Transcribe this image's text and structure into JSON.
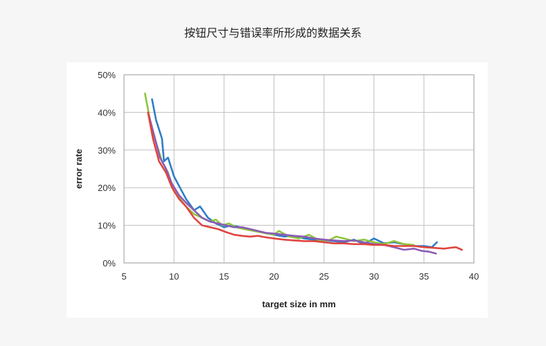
{
  "page": {
    "title": "按钮尺寸与错误率所形成的数据关系"
  },
  "chart_data": {
    "type": "line",
    "title": "",
    "xlabel": "target size in mm",
    "ylabel": "error rate",
    "xlim": [
      5,
      40
    ],
    "ylim": [
      0,
      50
    ],
    "x_ticks": [
      5,
      10,
      15,
      20,
      25,
      30,
      35,
      40
    ],
    "y_ticks": [
      0,
      10,
      20,
      30,
      40,
      50
    ],
    "x_tick_labels": [
      "5",
      "10",
      "15",
      "20",
      "25",
      "30",
      "35",
      "40"
    ],
    "y_tick_labels": [
      "0%",
      "10%",
      "20%",
      "30%",
      "40%",
      "50%"
    ],
    "grid": true,
    "legend": "none",
    "series": [
      {
        "color": "#2e7dc6",
        "x": [
          7.8,
          8.2,
          8.8,
          9.0,
          9.4,
          10.0,
          10.6,
          11.2,
          12.0,
          12.6,
          13.4,
          14.2,
          15.0,
          15.8,
          16.6,
          17.4,
          18.2,
          19.0,
          20.0,
          21.0,
          22.0,
          23.0,
          24.0,
          25.0,
          26.0,
          27.0,
          28.0,
          29.0,
          30.0,
          31.0,
          32.0,
          33.0,
          34.0,
          35.0,
          35.8,
          36.3
        ],
        "y": [
          43.5,
          38,
          33,
          27,
          28,
          23,
          20,
          17,
          14,
          15,
          12,
          10.5,
          9.5,
          10,
          9.5,
          9,
          8.5,
          8,
          7.5,
          7,
          7.2,
          6.5,
          6.2,
          6,
          5.8,
          5.5,
          6.2,
          5,
          6.5,
          5.2,
          5.5,
          5,
          4.5,
          4.5,
          4.2,
          5.5
        ]
      },
      {
        "color": "#8ec43a",
        "x": [
          7.1,
          7.6,
          8.2,
          8.8,
          9.4,
          10.0,
          10.6,
          11.2,
          12.0,
          12.8,
          13.6,
          14.2,
          14.8,
          15.5,
          16.2,
          17.0,
          18.0,
          19.0,
          20.0,
          20.5,
          21.5,
          22.5,
          23.5,
          24.5,
          25.5,
          26.2,
          27.0,
          28.0,
          29.0,
          30.0,
          31.0,
          32.0,
          33.0,
          34.0
        ],
        "y": [
          45,
          38,
          32,
          27,
          24,
          19,
          17,
          15,
          13,
          12,
          11,
          11.5,
          10,
          10.5,
          9.5,
          9,
          8.5,
          8,
          7.5,
          8.5,
          7,
          6.5,
          7.5,
          6,
          6,
          7,
          6.5,
          5.8,
          6.2,
          5.5,
          5,
          5.8,
          5,
          4.8
        ]
      },
      {
        "color": "#8b5bb5",
        "x": [
          7.5,
          8.0,
          8.6,
          9.2,
          9.8,
          10.5,
          11.2,
          12.0,
          12.8,
          13.6,
          14.4,
          15.2,
          16.0,
          16.8,
          17.6,
          18.4,
          19.2,
          20.0,
          21.0,
          22.0,
          23.0,
          24.0,
          25.0,
          26.0,
          27.0,
          28.0,
          29.0,
          30.0,
          31.0,
          32.0,
          33.0,
          34.0,
          34.8,
          35.5,
          36.2
        ],
        "y": [
          39,
          34,
          28,
          25,
          21,
          18,
          16,
          14,
          12,
          11,
          10.5,
          10,
          9.5,
          9.5,
          9,
          8.5,
          8,
          7.8,
          7.5,
          7.2,
          7,
          6.5,
          6.2,
          6,
          5.8,
          6,
          5.5,
          5,
          4.8,
          4.2,
          3.5,
          3.8,
          3.2,
          3,
          2.5
        ]
      },
      {
        "color": "#e0443e",
        "x": [
          7.4,
          7.9,
          8.5,
          9.2,
          9.8,
          10.5,
          11.2,
          12.0,
          12.8,
          13.6,
          14.4,
          15.2,
          16.0,
          16.8,
          17.6,
          18.4,
          19.2,
          20.0,
          21.0,
          22.0,
          23.0,
          24.0,
          25.0,
          26.0,
          27.0,
          28.0,
          29.0,
          30.0,
          31.0,
          32.0,
          33.0,
          34.0,
          35.0,
          36.0,
          37.0,
          37.6,
          38.2,
          38.8
        ],
        "y": [
          40,
          33,
          27,
          24,
          20,
          17,
          15,
          12,
          10,
          9.5,
          9,
          8.2,
          7.5,
          7.2,
          7,
          7.2,
          6.8,
          6.5,
          6.2,
          6,
          5.8,
          5.8,
          5.5,
          5.2,
          5.2,
          5,
          5,
          4.8,
          4.8,
          4.5,
          4.5,
          4.5,
          4.2,
          4,
          3.8,
          4,
          4.2,
          3.5
        ]
      }
    ]
  }
}
